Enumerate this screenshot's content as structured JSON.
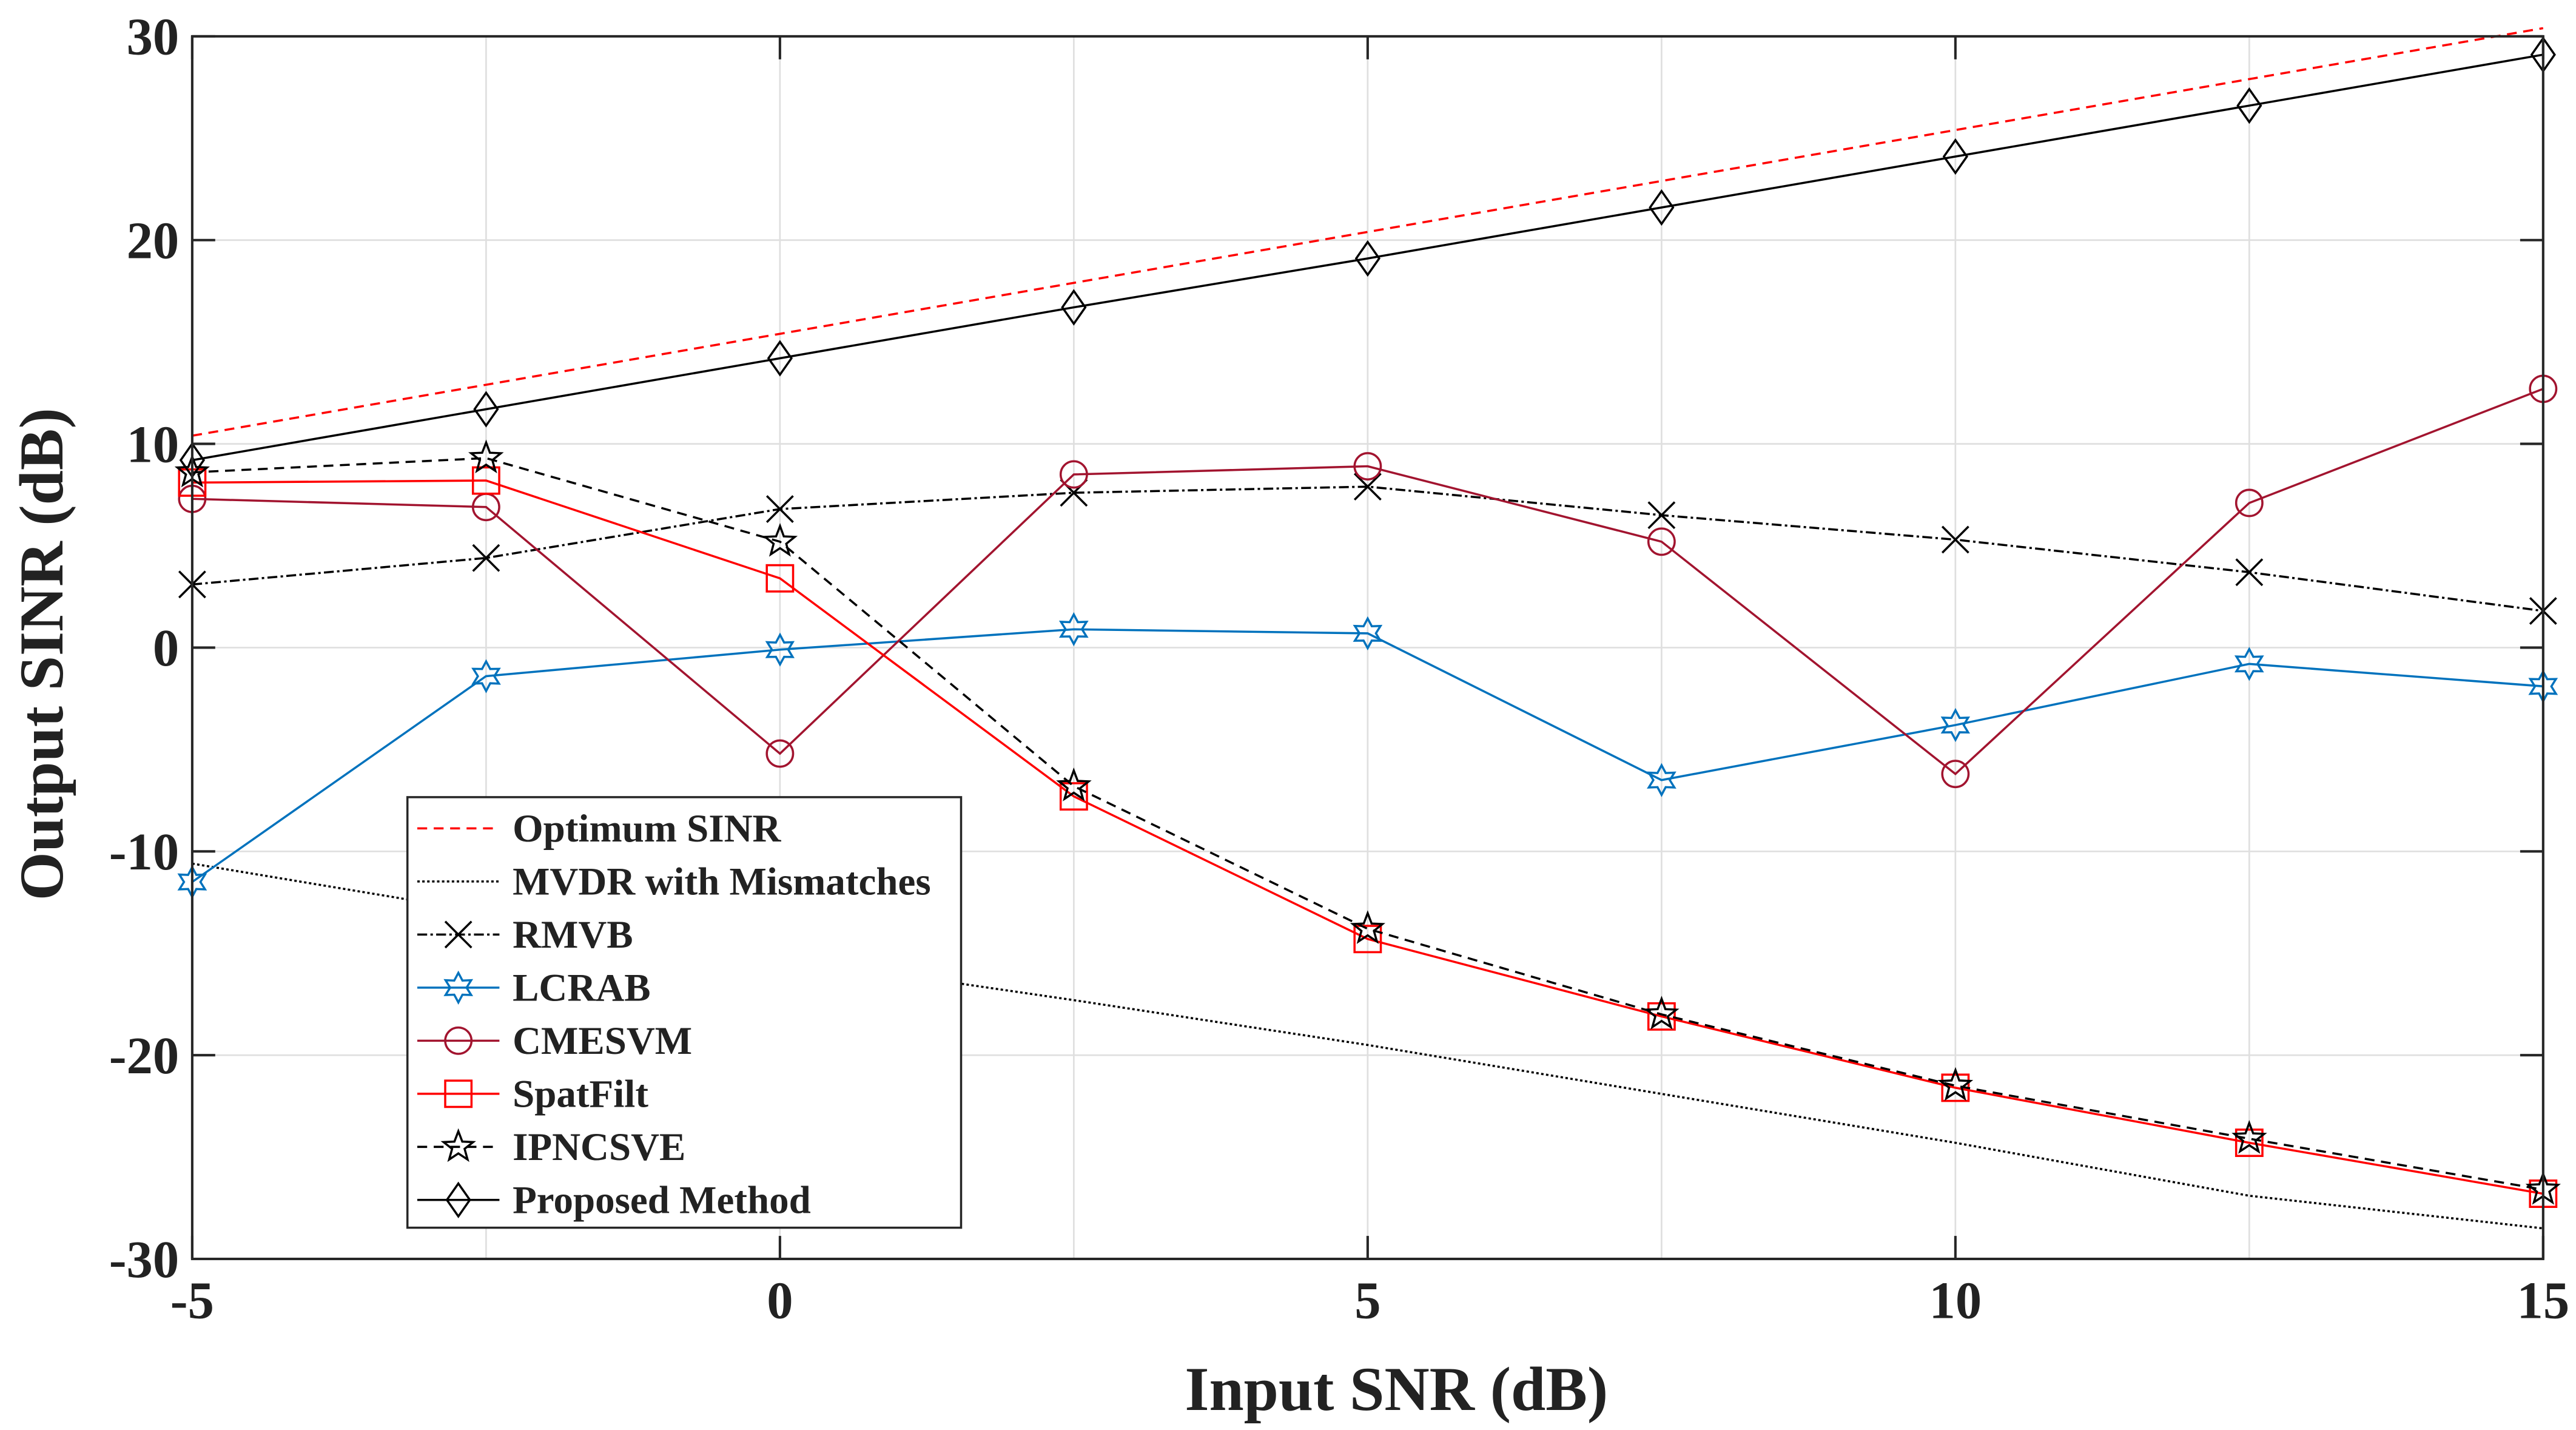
{
  "chart_data": {
    "type": "line",
    "title": "",
    "xlabel": "Input SNR (dB)",
    "ylabel": "Output SINR (dB)",
    "xlim": [
      -5,
      15
    ],
    "ylim": [
      -30,
      30
    ],
    "xticks": [
      -5,
      0,
      5,
      10,
      15
    ],
    "yticks": [
      -30,
      -20,
      -10,
      0,
      10,
      20,
      30
    ],
    "grid": true,
    "legend_position": "bottom-left",
    "x": [
      -5,
      -2.5,
      0,
      2.5,
      5,
      7.5,
      10,
      12.5,
      15
    ],
    "series": [
      {
        "name": "Optimum SINR",
        "color": "#FF0000",
        "line": "dashed",
        "marker": "none",
        "values": [
          10.4,
          12.9,
          15.4,
          17.9,
          20.4,
          22.9,
          25.4,
          27.9,
          30.4
        ]
      },
      {
        "name": "MVDR with Mismatches",
        "color": "#000000",
        "line": "dotted",
        "marker": "none",
        "values": [
          -10.6,
          -13.0,
          -15.2,
          -17.3,
          -19.5,
          -21.9,
          -24.3,
          -26.9,
          -28.5
        ]
      },
      {
        "name": "RMVB",
        "color": "#000000",
        "line": "dashdot",
        "marker": "x",
        "values": [
          3.1,
          4.4,
          6.8,
          7.6,
          7.9,
          6.5,
          5.3,
          3.7,
          1.8
        ]
      },
      {
        "name": "LCRAB",
        "color": "#0072BD",
        "line": "solid",
        "marker": "hexagram",
        "values": [
          -11.5,
          -1.4,
          -0.1,
          0.9,
          0.7,
          -6.5,
          -3.8,
          -0.8,
          -1.9
        ]
      },
      {
        "name": "CMESVM",
        "color": "#A2142F",
        "line": "solid",
        "marker": "circle",
        "values": [
          7.3,
          6.9,
          -5.2,
          8.5,
          8.9,
          5.2,
          -6.2,
          7.1,
          12.7
        ]
      },
      {
        "name": "SpatFilt",
        "color": "#FF0000",
        "line": "solid",
        "marker": "square",
        "values": [
          8.1,
          8.2,
          3.4,
          -7.3,
          -14.3,
          -18.1,
          -21.6,
          -24.3,
          -26.8
        ]
      },
      {
        "name": "IPNCSVE",
        "color": "#000000",
        "line": "dashed",
        "marker": "pentagram",
        "values": [
          8.6,
          9.3,
          5.2,
          -6.8,
          -13.8,
          -18.0,
          -21.5,
          -24.1,
          -26.6
        ]
      },
      {
        "name": "Proposed Method",
        "color": "#000000",
        "line": "solid",
        "marker": "diamond",
        "values": [
          9.2,
          11.7,
          14.2,
          16.7,
          19.1,
          21.6,
          24.1,
          26.6,
          29.1
        ]
      }
    ]
  }
}
